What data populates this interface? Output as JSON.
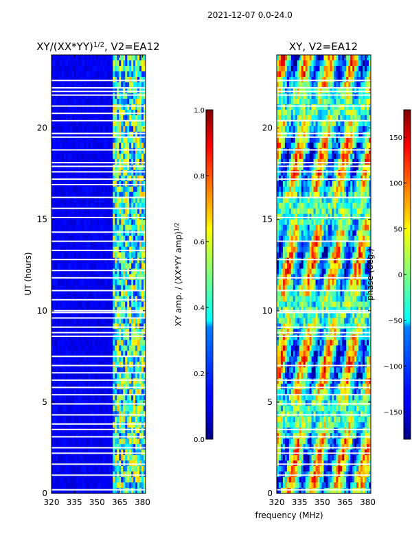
{
  "figure_title": "2021-12-07 0.0-24.0",
  "chart_data": [
    {
      "type": "heatmap",
      "title_main": "XY/(XX*YY)",
      "title_sup": "1/2",
      "title_tail": ", V2=EA12",
      "xlabel": "",
      "ylabel": "UT (hours)",
      "xlim": [
        320,
        382
      ],
      "ylim": [
        0,
        24
      ],
      "xticks": [
        320,
        335,
        350,
        365,
        380
      ],
      "yticks": [
        0,
        5,
        10,
        15,
        20
      ],
      "colormap": "jet",
      "colorbar": {
        "label_main": "XY amp. / (XX*YY amp)",
        "label_sup": "1/2",
        "range": [
          0.0,
          1.0
        ],
        "ticks": [
          "0.0",
          "0.2",
          "0.4",
          "0.6",
          "0.8",
          "1.0"
        ]
      },
      "rfi_free_band_mhz": [
        360,
        382
      ],
      "gap_rows_ut": [
        0.2,
        1.0,
        1.6,
        2.2,
        2.5,
        3.1,
        3.5,
        3.8,
        4.3,
        4.9,
        5.4,
        5.8,
        6.2,
        6.6,
        7.0,
        7.5,
        8.6,
        8.8,
        9.1,
        9.6,
        9.9,
        10.0,
        10.6,
        11.1,
        11.8,
        12.2,
        12.8,
        13.3,
        13.8,
        14.3,
        15.1,
        15.6,
        16.2,
        16.9,
        17.2,
        17.6,
        17.9,
        18.1,
        18.8,
        19.5,
        19.7,
        20.4,
        20.8,
        21.2,
        21.8,
        22.0,
        22.2,
        22.6
      ]
    },
    {
      "type": "heatmap",
      "title_main": "XY, V2=EA12",
      "xlabel": "frequency (MHz)",
      "ylabel": "",
      "xlim": [
        320,
        382
      ],
      "ylim": [
        0,
        24
      ],
      "xticks": [
        320,
        335,
        350,
        365,
        380
      ],
      "yticks": [
        0,
        5,
        10,
        15,
        20
      ],
      "colormap": "jet",
      "colorbar": {
        "label_main": "phase (deg.)",
        "range": [
          -180,
          180
        ],
        "ticks": [
          "−150",
          "−100",
          "−50",
          "0",
          "50",
          "100",
          "150"
        ]
      },
      "gap_rows_ut": [
        0.2,
        1.0,
        1.6,
        2.2,
        2.5,
        3.1,
        3.5,
        4.3,
        4.9,
        5.4,
        5.8,
        6.2,
        7.0,
        8.6,
        8.8,
        9.1,
        9.9,
        10.0,
        11.1,
        11.8,
        12.8,
        13.8,
        15.1,
        16.2,
        17.2,
        17.6,
        17.9,
        18.1,
        18.8,
        19.5,
        19.7,
        20.4,
        21.2,
        21.8,
        22.0,
        22.2,
        22.6
      ]
    }
  ]
}
